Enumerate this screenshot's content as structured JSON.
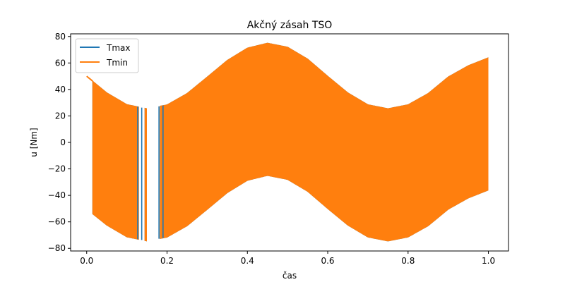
{
  "chart_data": {
    "type": "area",
    "title": "Akčný zásah TSO",
    "xlabel": "čas",
    "ylabel": "u [Nm]",
    "xlim": [
      -0.04,
      1.05
    ],
    "ylim": [
      -82,
      82
    ],
    "xticks": [
      0.0,
      0.2,
      0.4,
      0.6,
      0.8,
      1.0
    ],
    "xtick_labels": [
      "0.0",
      "0.2",
      "0.4",
      "0.6",
      "0.8",
      "1.0"
    ],
    "yticks": [
      -80,
      -60,
      -40,
      -20,
      0,
      20,
      40,
      60,
      80
    ],
    "ytick_labels": [
      "−80",
      "−60",
      "−40",
      "−20",
      "0",
      "20",
      "40",
      "60",
      "80"
    ],
    "grid": false,
    "legend_position": "top-left",
    "series": [
      {
        "name": "Tmax",
        "color": "#1f77b4",
        "upper_envelope": [
          [
            0.0,
            50
          ],
          [
            0.05,
            37.5
          ],
          [
            0.1,
            28.6
          ],
          [
            0.15,
            25.5
          ],
          [
            0.2,
            28.4
          ],
          [
            0.25,
            37.0
          ],
          [
            0.3,
            49.4
          ],
          [
            0.35,
            62.0
          ],
          [
            0.4,
            71.3
          ],
          [
            0.45,
            75.0
          ],
          [
            0.5,
            72.0
          ],
          [
            0.55,
            63.0
          ],
          [
            0.6,
            50.0
          ],
          [
            0.65,
            37.5
          ],
          [
            0.7,
            28.5
          ],
          [
            0.75,
            25.5
          ],
          [
            0.8,
            28.5
          ],
          [
            0.85,
            37.0
          ],
          [
            0.9,
            49.5
          ],
          [
            0.95,
            58.0
          ],
          [
            1.0,
            64.0
          ]
        ],
        "lower_envelope": [
          [
            0.015,
            -54
          ],
          [
            0.05,
            -62.5
          ],
          [
            0.1,
            -71.4
          ],
          [
            0.15,
            -74.5
          ],
          [
            0.2,
            -71.6
          ],
          [
            0.25,
            -63.0
          ],
          [
            0.3,
            -50.6
          ],
          [
            0.35,
            -38.0
          ],
          [
            0.4,
            -28.7
          ],
          [
            0.45,
            -25.0
          ],
          [
            0.5,
            -28.0
          ],
          [
            0.55,
            -37.0
          ],
          [
            0.6,
            -50.0
          ],
          [
            0.65,
            -62.5
          ],
          [
            0.7,
            -71.5
          ],
          [
            0.75,
            -74.5
          ],
          [
            0.8,
            -71.5
          ],
          [
            0.85,
            -63.0
          ],
          [
            0.9,
            -50.5
          ],
          [
            0.95,
            -42.0
          ],
          [
            1.0,
            -36.0
          ]
        ]
      },
      {
        "name": "Tmin",
        "color": "#ff7f0e",
        "upper_envelope": [
          [
            0.0,
            50
          ],
          [
            0.05,
            37.5
          ],
          [
            0.1,
            28.6
          ],
          [
            0.15,
            25.5
          ],
          [
            0.2,
            28.4
          ],
          [
            0.25,
            37.0
          ],
          [
            0.3,
            49.4
          ],
          [
            0.35,
            62.0
          ],
          [
            0.4,
            71.3
          ],
          [
            0.45,
            75.0
          ],
          [
            0.5,
            72.0
          ],
          [
            0.55,
            63.0
          ],
          [
            0.6,
            50.0
          ],
          [
            0.65,
            37.5
          ],
          [
            0.7,
            28.5
          ],
          [
            0.75,
            25.5
          ],
          [
            0.8,
            28.5
          ],
          [
            0.85,
            37.0
          ],
          [
            0.9,
            49.5
          ],
          [
            0.95,
            58.0
          ],
          [
            1.0,
            64.0
          ]
        ],
        "lower_envelope": [
          [
            0.015,
            -54
          ],
          [
            0.05,
            -62.5
          ],
          [
            0.1,
            -71.4
          ],
          [
            0.15,
            -74.5
          ],
          [
            0.2,
            -71.6
          ],
          [
            0.25,
            -63.0
          ],
          [
            0.3,
            -50.6
          ],
          [
            0.35,
            -38.0
          ],
          [
            0.4,
            -28.7
          ],
          [
            0.45,
            -25.0
          ],
          [
            0.5,
            -28.0
          ],
          [
            0.55,
            -37.0
          ],
          [
            0.6,
            -50.0
          ],
          [
            0.65,
            -62.5
          ],
          [
            0.7,
            -71.5
          ],
          [
            0.75,
            -74.5
          ],
          [
            0.8,
            -71.5
          ],
          [
            0.85,
            -63.0
          ],
          [
            0.9,
            -50.5
          ],
          [
            0.95,
            -42.0
          ],
          [
            1.0,
            -36.0
          ]
        ]
      }
    ],
    "gap_lines": [
      {
        "x": 0.127,
        "series": "Tmax"
      },
      {
        "x": 0.137,
        "series": "Tmax"
      },
      {
        "x": 0.147,
        "series": "Tmin"
      },
      {
        "x": 0.18,
        "series": "Tmax"
      },
      {
        "x": 0.19,
        "series": "Tmax"
      }
    ],
    "gaps": [
      [
        0.13,
        0.145
      ],
      [
        0.15,
        0.182
      ]
    ]
  }
}
